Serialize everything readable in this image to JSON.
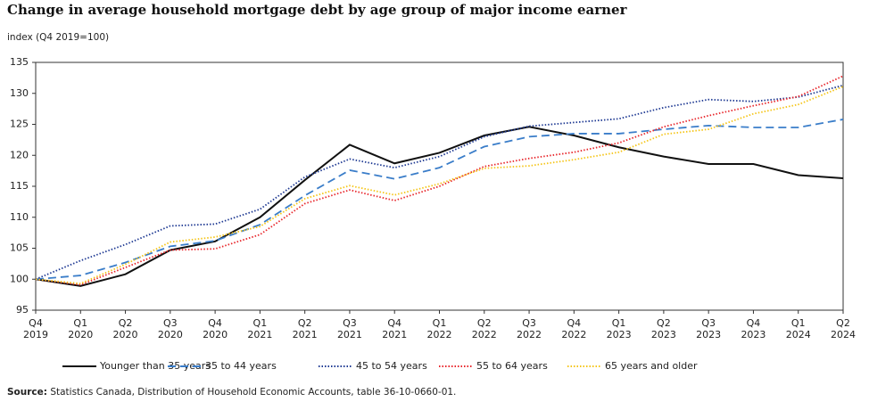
{
  "chart_data": {
    "type": "line",
    "title": "Change in average household mortgage debt by age group of major income earner",
    "subtitle": "index (Q4 2019=100)",
    "categories": [
      "Q4 2019",
      "Q1 2020",
      "Q2 2020",
      "Q3 2020",
      "Q4 2020",
      "Q1 2021",
      "Q2 2021",
      "Q3 2021",
      "Q4 2021",
      "Q1 2022",
      "Q2 2022",
      "Q3 2022",
      "Q4 2022",
      "Q1 2023",
      "Q2 2023",
      "Q3 2023",
      "Q4 2023",
      "Q1 2024",
      "Q2 2024"
    ],
    "series": [
      {
        "name": "Younger than 35 years",
        "color": "#111111",
        "dash": "solid",
        "values": [
          100,
          98.9,
          100.8,
          104.7,
          106.1,
          110.0,
          116.0,
          121.7,
          118.7,
          120.4,
          123.2,
          124.6,
          123.2,
          121.3,
          119.8,
          118.6,
          118.6,
          116.8,
          116.3
        ]
      },
      {
        "name": "35 to 44 years",
        "color": "#3a7dc9",
        "dash": "dashed",
        "values": [
          100,
          100.6,
          102.7,
          105.3,
          106.2,
          108.8,
          113.5,
          117.6,
          116.2,
          118.0,
          121.4,
          123.0,
          123.5,
          123.5,
          124.2,
          124.8,
          124.5,
          124.5,
          125.8
        ]
      },
      {
        "name": "45 to 54 years",
        "color": "#1f3a93",
        "dash": "dotted",
        "values": [
          100,
          103.0,
          105.6,
          108.6,
          108.9,
          111.3,
          116.5,
          119.4,
          118.0,
          119.8,
          123.0,
          124.7,
          125.3,
          125.9,
          127.7,
          129.0,
          128.7,
          129.4,
          131.3
        ]
      },
      {
        "name": "55 to 64 years",
        "color": "#e8262b",
        "dash": "dotted",
        "values": [
          100,
          99.1,
          101.9,
          104.7,
          104.9,
          107.2,
          112.2,
          114.4,
          112.7,
          115.0,
          118.2,
          119.5,
          120.5,
          122.0,
          124.6,
          126.4,
          128.0,
          129.5,
          132.8
        ]
      },
      {
        "name": "65 years and older",
        "color": "#f5c518",
        "dash": "dotted",
        "values": [
          100,
          99.3,
          102.4,
          106.0,
          106.8,
          108.5,
          113.0,
          115.1,
          113.6,
          115.4,
          117.9,
          118.3,
          119.3,
          120.5,
          123.4,
          124.2,
          126.7,
          128.2,
          131.1
        ]
      }
    ],
    "ylim": [
      95,
      135
    ],
    "yticks": [
      95,
      100,
      105,
      110,
      115,
      120,
      125,
      130,
      135
    ],
    "grid": false,
    "legend": "bottom",
    "source_label": "Source:",
    "source_text": "Statistics Canada, Distribution of Household Economic Accounts, table 36-10-0660-01."
  }
}
